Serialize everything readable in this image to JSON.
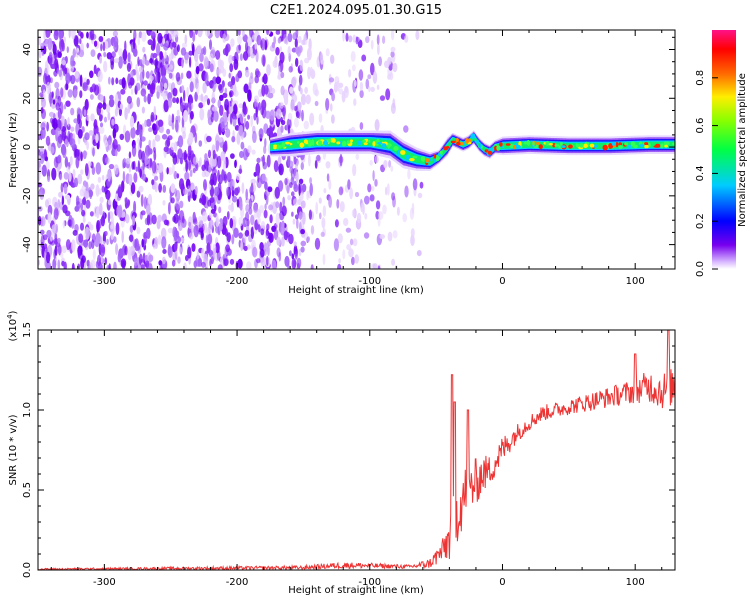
{
  "figure": {
    "title": "C2E1.2024.095.01.30.G15"
  },
  "chart_data": [
    {
      "type": "heatmap",
      "xlabel": "Height of straight line (km)",
      "ylabel": "Frequency (Hz)",
      "xlim": [
        -350,
        130
      ],
      "ylim": [
        -50,
        48
      ],
      "x_ticks": [
        -300,
        -200,
        -100,
        0,
        100
      ],
      "x_tick_labels": [
        "-300",
        "-200",
        "-100",
        "0",
        "100"
      ],
      "y_ticks": [
        -40,
        -20,
        0,
        20,
        40
      ],
      "y_tick_labels": [
        "-40",
        "-20",
        "0",
        "20",
        "40"
      ],
      "signal_track": {
        "x": [
          -175,
          -160,
          -140,
          -120,
          -100,
          -85,
          -75,
          -65,
          -55,
          -48,
          -42,
          -38,
          -34,
          -30,
          -26,
          -22,
          -18,
          -14,
          -10,
          -6,
          0,
          20,
          50,
          80,
          110,
          130
        ],
        "y": [
          0,
          1,
          2,
          2,
          2,
          1,
          -3,
          -5,
          -6,
          -4,
          0,
          3,
          2,
          1,
          2,
          4,
          1,
          -1,
          -2,
          0,
          0.5,
          1,
          0.5,
          0.5,
          1,
          1
        ],
        "width_hz": [
          4,
          5,
          5,
          5,
          5,
          6,
          6,
          5,
          4,
          3,
          4,
          3,
          3,
          3,
          3,
          3,
          3,
          3,
          3,
          3,
          4,
          4,
          4,
          4,
          4,
          4
        ]
      },
      "noise_region": {
        "x_start": -350,
        "x_end": -80,
        "sparse_until": -60
      },
      "colorbar": {
        "label": "Normalized spectral amplitude",
        "range": [
          0,
          1
        ],
        "ticks": [
          0.0,
          0.2,
          0.4,
          0.6,
          0.8
        ],
        "tick_labels": [
          "0.0",
          "0.2",
          "0.4",
          "0.6",
          "0.8"
        ],
        "colors": [
          "#ffffff",
          "#7700ee",
          "#0000ff",
          "#00ccff",
          "#00ff66",
          "#88ff00",
          "#ffee00",
          "#ff6600",
          "#ff0000",
          "#ff1188"
        ]
      }
    },
    {
      "type": "line",
      "xlabel": "Height of straight line (km)",
      "ylabel": "SNR (10 * v/v)",
      "y_multiplier": "(x10",
      "y_multiplier_exp": "4",
      "y_multiplier_close": ")",
      "xlim": [
        -350,
        130
      ],
      "ylim": [
        0,
        1.5
      ],
      "x_ticks": [
        -300,
        -200,
        -100,
        0,
        100
      ],
      "x_tick_labels": [
        "-300",
        "-200",
        "-100",
        "0",
        "100"
      ],
      "y_ticks": [
        0,
        0.5,
        1.0,
        1.5
      ],
      "y_tick_labels": [
        "0.0",
        "0.5",
        "1.0",
        "1.5"
      ],
      "color": "#ee3333",
      "envelope": {
        "x": [
          -350,
          -250,
          -150,
          -120,
          -90,
          -70,
          -55,
          -45,
          -40,
          -35,
          -30,
          -25,
          -20,
          -15,
          -10,
          -5,
          0,
          10,
          20,
          30,
          50,
          70,
          90,
          100,
          110,
          120,
          130
        ],
        "mean": [
          0.005,
          0.01,
          0.015,
          0.03,
          0.025,
          0.02,
          0.04,
          0.12,
          0.2,
          0.35,
          0.45,
          0.5,
          0.55,
          0.6,
          0.62,
          0.68,
          0.75,
          0.85,
          0.92,
          0.98,
          1.02,
          1.06,
          1.1,
          1.12,
          1.15,
          1.12,
          1.15
        ],
        "noise": [
          0.005,
          0.008,
          0.012,
          0.02,
          0.015,
          0.012,
          0.03,
          0.08,
          0.15,
          0.2,
          0.2,
          0.18,
          0.15,
          0.12,
          0.1,
          0.1,
          0.09,
          0.06,
          0.05,
          0.05,
          0.05,
          0.06,
          0.07,
          0.08,
          0.1,
          0.12,
          0.12
        ]
      },
      "peaks": [
        {
          "x": -38,
          "y": 1.22
        },
        {
          "x": -36,
          "y": 1.05
        },
        {
          "x": -26,
          "y": 1.0
        },
        {
          "x": 100,
          "y": 1.35
        },
        {
          "x": 125,
          "y": 1.5
        }
      ]
    }
  ]
}
